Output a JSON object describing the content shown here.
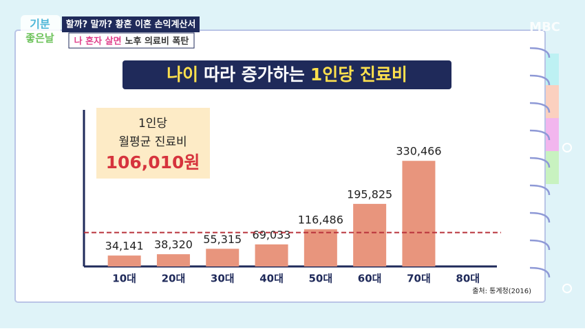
{
  "broadcast": {
    "logo_top": "기분",
    "logo_bottom": "좋은날",
    "headline": "할까? 말까? 황혼 이혼 손익계산서",
    "subheadline_highlight": "나 혼자 살면",
    "subheadline_rest": "노후 의료비 폭탄",
    "channel": "MBC"
  },
  "chart_data": {
    "type": "bar",
    "title_parts": [
      "나이",
      "따라 증가하는",
      "1인당 진료비"
    ],
    "categories": [
      "10대",
      "20대",
      "30대",
      "40대",
      "50대",
      "60대",
      "70대",
      "80대"
    ],
    "values": [
      34141,
      38320,
      55315,
      69033,
      116486,
      195825,
      330466,
      null
    ],
    "value_labels": [
      "34,141",
      "38,320",
      "55,315",
      "69,033",
      "116,486",
      "195,825",
      "330,466",
      null
    ],
    "color": "#e8957d",
    "ylim": [
      0,
      490000
    ],
    "reference_line": {
      "value": 106010,
      "color": "#b8313a"
    },
    "annotation": {
      "line1": "1인당",
      "line2": "월평균 진료비",
      "value_label": "106,010원"
    },
    "source": "출처: 통계청(2016)"
  }
}
